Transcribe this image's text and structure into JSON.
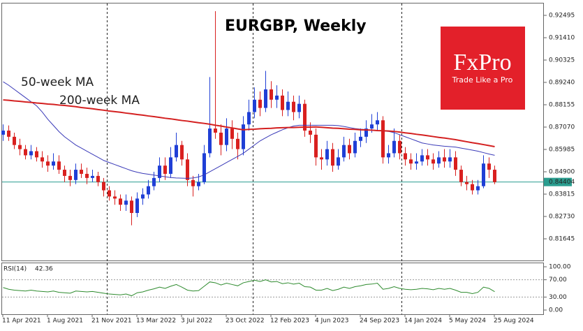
{
  "chart_data": {
    "type": "candlestick",
    "title": "EURGBP, Weekly",
    "categories": [
      "11 Apr 2021",
      null,
      null,
      null,
      null,
      null,
      null,
      null,
      "1 Aug 2021",
      null,
      null,
      null,
      null,
      null,
      null,
      null,
      "21 Nov 2021",
      null,
      null,
      null,
      null,
      null,
      null,
      null,
      "13 Mar 2022",
      null,
      null,
      null,
      null,
      null,
      null,
      null,
      "3 Jul 2022",
      null,
      null,
      null,
      null,
      null,
      null,
      null,
      "23 Oct 2022",
      null,
      null,
      null,
      null,
      null,
      null,
      null,
      "12 Feb 2023",
      null,
      null,
      null,
      null,
      null,
      null,
      null,
      "4 Jun 2023",
      null,
      null,
      null,
      null,
      null,
      null,
      null,
      "24 Sep 2023",
      null,
      null,
      null,
      null,
      null,
      null,
      null,
      "14 Jan 2024",
      null,
      null,
      null,
      null,
      null,
      null,
      null,
      "5 May 2024",
      null,
      null,
      null,
      null,
      null,
      null,
      null,
      "25 Aug 2024"
    ],
    "open": [
      0.867,
      0.869,
      0.866,
      0.862,
      0.86,
      0.857,
      0.859,
      0.856,
      0.854,
      0.852,
      0.854,
      0.85,
      0.847,
      0.845,
      0.85,
      0.848,
      0.846,
      0.847,
      0.844,
      0.84,
      0.837,
      0.836,
      0.833,
      0.835,
      0.829,
      0.836,
      0.838,
      0.842,
      0.846,
      0.852,
      0.848,
      0.856,
      0.862,
      0.855,
      0.845,
      0.842,
      0.844,
      0.858,
      0.87,
      0.868,
      0.862,
      0.87,
      0.865,
      0.86,
      0.872,
      0.878,
      0.884,
      0.88,
      0.889,
      0.884,
      0.886,
      0.879,
      0.883,
      0.878,
      0.882,
      0.869,
      0.867,
      0.856,
      0.855,
      0.86,
      0.852,
      0.856,
      0.862,
      0.858,
      0.864,
      0.866,
      0.87,
      0.872,
      0.874,
      0.856,
      0.858,
      0.864,
      0.858,
      0.855,
      0.853,
      0.854,
      0.857,
      0.855,
      0.853,
      0.856,
      0.854,
      0.856,
      0.85,
      0.844,
      0.843,
      0.84,
      0.842,
      0.853,
      0.85
    ],
    "high": [
      0.872,
      0.8715,
      0.868,
      0.865,
      0.862,
      0.862,
      0.861,
      0.859,
      0.857,
      0.858,
      0.857,
      0.852,
      0.85,
      0.853,
      0.853,
      0.851,
      0.85,
      0.849,
      0.846,
      0.842,
      0.84,
      0.838,
      0.838,
      0.837,
      0.839,
      0.841,
      0.845,
      0.849,
      0.856,
      0.856,
      0.861,
      0.868,
      0.864,
      0.858,
      0.847,
      0.848,
      0.862,
      0.895,
      0.927,
      0.872,
      0.875,
      0.874,
      0.868,
      0.876,
      0.884,
      0.89,
      0.888,
      0.898,
      0.893,
      0.891,
      0.889,
      0.888,
      0.886,
      0.886,
      0.884,
      0.873,
      0.87,
      0.86,
      0.864,
      0.863,
      0.86,
      0.866,
      0.865,
      0.868,
      0.87,
      0.874,
      0.877,
      0.878,
      0.876,
      0.862,
      0.87,
      0.867,
      0.861,
      0.858,
      0.858,
      0.86,
      0.86,
      0.858,
      0.859,
      0.86,
      0.86,
      0.859,
      0.852,
      0.847,
      0.845,
      0.845,
      0.857,
      0.856,
      0.852
    ],
    "low": [
      0.864,
      0.864,
      0.86,
      0.857,
      0.855,
      0.855,
      0.854,
      0.851,
      0.849,
      0.85,
      0.848,
      0.844,
      0.842,
      0.843,
      0.846,
      0.843,
      0.844,
      0.842,
      0.837,
      0.835,
      0.833,
      0.83,
      0.83,
      0.823,
      0.827,
      0.833,
      0.836,
      0.84,
      0.844,
      0.845,
      0.846,
      0.854,
      0.852,
      0.842,
      0.837,
      0.84,
      0.843,
      0.856,
      0.865,
      0.857,
      0.859,
      0.86,
      0.855,
      0.857,
      0.869,
      0.875,
      0.876,
      0.878,
      0.88,
      0.88,
      0.876,
      0.876,
      0.874,
      0.875,
      0.866,
      0.863,
      0.852,
      0.85,
      0.852,
      0.849,
      0.85,
      0.854,
      0.855,
      0.856,
      0.861,
      0.863,
      0.868,
      0.869,
      0.853,
      0.853,
      0.856,
      0.855,
      0.852,
      0.85,
      0.85,
      0.852,
      0.852,
      0.85,
      0.851,
      0.851,
      0.851,
      0.847,
      0.842,
      0.84,
      0.838,
      0.838,
      0.841,
      0.846,
      0.843
    ],
    "close": [
      0.869,
      0.866,
      0.862,
      0.86,
      0.857,
      0.859,
      0.856,
      0.854,
      0.852,
      0.854,
      0.85,
      0.847,
      0.845,
      0.85,
      0.848,
      0.846,
      0.847,
      0.844,
      0.84,
      0.837,
      0.836,
      0.833,
      0.835,
      0.829,
      0.836,
      0.838,
      0.842,
      0.846,
      0.852,
      0.848,
      0.856,
      0.862,
      0.855,
      0.845,
      0.842,
      0.844,
      0.858,
      0.87,
      0.868,
      0.862,
      0.87,
      0.865,
      0.86,
      0.872,
      0.878,
      0.884,
      0.88,
      0.889,
      0.884,
      0.886,
      0.879,
      0.883,
      0.878,
      0.882,
      0.869,
      0.867,
      0.856,
      0.855,
      0.86,
      0.852,
      0.856,
      0.862,
      0.858,
      0.864,
      0.866,
      0.87,
      0.872,
      0.874,
      0.856,
      0.858,
      0.864,
      0.858,
      0.855,
      0.853,
      0.854,
      0.857,
      0.855,
      0.853,
      0.856,
      0.854,
      0.856,
      0.85,
      0.844,
      0.843,
      0.84,
      0.842,
      0.853,
      0.85,
      0.844
    ],
    "up_color": "#1f3fd6",
    "down_color": "#d9201f",
    "series": [
      {
        "name": "50-week MA",
        "color": "#3a3ab8",
        "values": [
          0.8927,
          0.891,
          0.889,
          0.887,
          0.885,
          0.883,
          0.881,
          0.878,
          0.8745,
          0.8715,
          0.8685,
          0.866,
          0.864,
          0.862,
          0.8605,
          0.859,
          0.8575,
          0.856,
          0.8545,
          0.8535,
          0.8525,
          0.8515,
          0.8505,
          0.8495,
          0.8488,
          0.8482,
          0.8478,
          0.8474,
          0.847,
          0.8466,
          0.8462,
          0.846,
          0.8459,
          0.8458,
          0.846,
          0.8465,
          0.8475,
          0.849,
          0.8505,
          0.852,
          0.8535,
          0.855,
          0.8565,
          0.858,
          0.86,
          0.862,
          0.864,
          0.8655,
          0.867,
          0.8682,
          0.8694,
          0.8704,
          0.8712,
          0.8716,
          0.8716,
          0.8716,
          0.8716,
          0.8716,
          0.8716,
          0.8716,
          0.8714,
          0.871,
          0.8705,
          0.87,
          0.8697,
          0.8695,
          0.8692,
          0.869,
          0.8688,
          0.8686,
          0.868,
          0.867,
          0.866,
          0.865,
          0.864,
          0.863,
          0.8625,
          0.862,
          0.8617,
          0.8614,
          0.8612,
          0.861,
          0.8605,
          0.86,
          0.8595,
          0.859,
          0.8583,
          0.8576,
          0.857
        ]
      },
      {
        "name": "200-week MA",
        "color": "#d42020",
        "values": [
          0.8839,
          0.8837,
          0.8834,
          0.8832,
          0.8829,
          0.8827,
          0.8824,
          0.8822,
          0.8819,
          0.8817,
          0.8814,
          0.8812,
          0.8809,
          0.8806,
          0.8802,
          0.8799,
          0.8796,
          0.8792,
          0.8789,
          0.8785,
          0.8782,
          0.8779,
          0.8775,
          0.8772,
          0.8768,
          0.8765,
          0.8761,
          0.8758,
          0.8754,
          0.875,
          0.8747,
          0.8743,
          0.8739,
          0.8736,
          0.8732,
          0.8728,
          0.8725,
          0.8721,
          0.8716,
          0.8712,
          0.8707,
          0.8703,
          0.8698,
          0.8694,
          0.8696,
          0.8697,
          0.8699,
          0.87,
          0.8701,
          0.8703,
          0.8704,
          0.8705,
          0.8705,
          0.8706,
          0.8707,
          0.8707,
          0.8708,
          0.8706,
          0.8704,
          0.8702,
          0.8701,
          0.8699,
          0.8697,
          0.8696,
          0.8694,
          0.8693,
          0.8692,
          0.869,
          0.8689,
          0.8688,
          0.8686,
          0.8683,
          0.8679,
          0.8676,
          0.8672,
          0.8669,
          0.8665,
          0.8661,
          0.8657,
          0.8654,
          0.865,
          0.8646,
          0.8641,
          0.8636,
          0.8631,
          0.8627,
          0.8622,
          0.8617,
          0.8612
        ]
      }
    ],
    "ylim": [
      0.80594,
      0.93071
    ],
    "yticks": [
      0.81645,
      {
        "value": 0.8273,
        "label": "0.82730"
      },
      0.83815,
      {
        "value": 0.849,
        "label": "0.84900"
      },
      0.85985,
      {
        "value": 0.8707,
        "label": "0.87070"
      },
      0.88155,
      {
        "value": 0.8924,
        "label": "0.89240"
      },
      0.90325,
      {
        "value": 0.9141,
        "label": "0.91410"
      },
      0.92495
    ],
    "current_price": 0.84404,
    "current_price_color": "#2a9d8f",
    "rsi": {
      "label": "RSI(14)",
      "color": "#2e8b2e",
      "values": [
        52,
        48,
        46,
        45,
        44,
        46,
        44,
        43,
        42,
        44,
        41,
        40,
        39,
        44,
        43,
        42,
        43,
        41,
        39,
        37,
        36,
        35,
        37,
        33,
        40,
        42,
        46,
        49,
        53,
        50,
        55,
        59,
        53,
        46,
        44,
        45,
        55,
        65,
        63,
        58,
        62,
        59,
        56,
        63,
        66,
        69,
        66,
        70,
        65,
        66,
        61,
        63,
        60,
        62,
        54,
        53,
        46,
        46,
        50,
        45,
        48,
        53,
        50,
        54,
        56,
        59,
        60,
        62,
        48,
        50,
        54,
        50,
        48,
        47,
        48,
        50,
        49,
        47,
        50,
        48,
        50,
        46,
        41,
        41,
        38,
        41,
        53,
        50,
        42.36
      ],
      "ylim": [
        -9.7,
        108.1
      ],
      "yticks": [
        {
          "value": 0,
          "label": "0.00"
        },
        {
          "value": 30,
          "label": "30.00"
        },
        {
          "value": 70,
          "label": "70.00"
        },
        {
          "value": 100,
          "label": "100.00"
        }
      ]
    }
  },
  "logo": {
    "name": "FxPro",
    "tagline": "Trade Like a Pro"
  }
}
